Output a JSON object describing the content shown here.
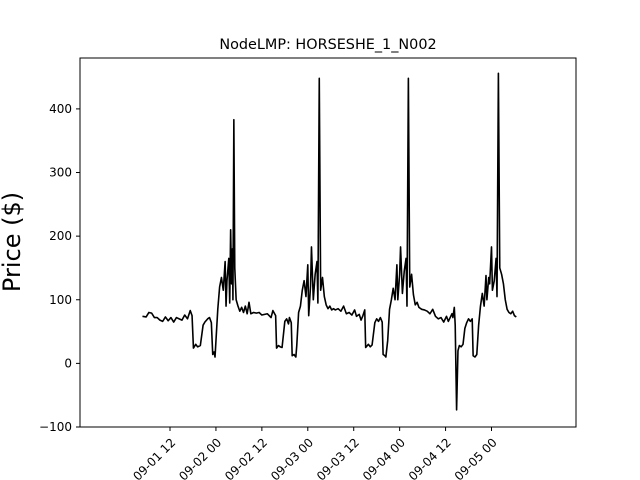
{
  "chart_data": {
    "type": "line",
    "title": "NodeLMP: HORSESHE_1_N002",
    "xlabel": "",
    "ylabel": "Price ($)",
    "ylim": [
      -100,
      480
    ],
    "xlim": [
      -0.48,
      4.92
    ],
    "grid": false,
    "yticks": [
      -100,
      0,
      100,
      200,
      300,
      400
    ],
    "xticks": [
      {
        "pos": 0.5,
        "label": "09-01 12"
      },
      {
        "pos": 1.0,
        "label": "09-02 00"
      },
      {
        "pos": 1.5,
        "label": "09-02 12"
      },
      {
        "pos": 2.0,
        "label": "09-03 00"
      },
      {
        "pos": 2.5,
        "label": "09-03 12"
      },
      {
        "pos": 3.0,
        "label": "09-04 00"
      },
      {
        "pos": 3.5,
        "label": "09-04 12"
      },
      {
        "pos": 4.0,
        "label": "09-05 00"
      }
    ],
    "series": [
      {
        "color": "#000000",
        "points": [
          [
            0.2,
            74
          ],
          [
            0.24,
            73
          ],
          [
            0.27,
            80
          ],
          [
            0.3,
            79
          ],
          [
            0.33,
            72
          ],
          [
            0.36,
            72
          ],
          [
            0.39,
            68
          ],
          [
            0.42,
            66
          ],
          [
            0.45,
            73
          ],
          [
            0.48,
            67
          ],
          [
            0.51,
            72
          ],
          [
            0.54,
            65
          ],
          [
            0.57,
            72
          ],
          [
            0.6,
            70
          ],
          [
            0.63,
            68
          ],
          [
            0.66,
            76
          ],
          [
            0.69,
            70
          ],
          [
            0.72,
            83
          ],
          [
            0.74,
            75
          ],
          [
            0.755,
            24
          ],
          [
            0.78,
            30
          ],
          [
            0.8,
            26
          ],
          [
            0.83,
            28
          ],
          [
            0.86,
            60
          ],
          [
            0.88,
            65
          ],
          [
            0.91,
            70
          ],
          [
            0.93,
            72
          ],
          [
            0.95,
            64
          ],
          [
            0.965,
            14
          ],
          [
            0.98,
            18
          ],
          [
            0.99,
            10
          ],
          [
            1.0,
            35
          ],
          [
            1.02,
            85
          ],
          [
            1.04,
            120
          ],
          [
            1.06,
            135
          ],
          [
            1.08,
            115
          ],
          [
            1.1,
            160
          ],
          [
            1.11,
            90
          ],
          [
            1.12,
            130
          ],
          [
            1.14,
            165
          ],
          [
            1.15,
            95
          ],
          [
            1.16,
            210
          ],
          [
            1.17,
            125
          ],
          [
            1.18,
            180
          ],
          [
            1.185,
            100
          ],
          [
            1.195,
            383
          ],
          [
            1.205,
            150
          ],
          [
            1.22,
            100
          ],
          [
            1.24,
            90
          ],
          [
            1.26,
            82
          ],
          [
            1.28,
            88
          ],
          [
            1.3,
            80
          ],
          [
            1.32,
            90
          ],
          [
            1.34,
            78
          ],
          [
            1.36,
            96
          ],
          [
            1.38,
            78
          ],
          [
            1.41,
            80
          ],
          [
            1.44,
            79
          ],
          [
            1.47,
            80
          ],
          [
            1.5,
            76
          ],
          [
            1.53,
            77
          ],
          [
            1.56,
            78
          ],
          [
            1.6,
            72
          ],
          [
            1.62,
            83
          ],
          [
            1.65,
            75
          ],
          [
            1.66,
            24
          ],
          [
            1.68,
            28
          ],
          [
            1.7,
            26
          ],
          [
            1.72,
            25
          ],
          [
            1.75,
            66
          ],
          [
            1.77,
            70
          ],
          [
            1.79,
            62
          ],
          [
            1.8,
            72
          ],
          [
            1.82,
            64
          ],
          [
            1.83,
            12
          ],
          [
            1.85,
            14
          ],
          [
            1.87,
            10
          ],
          [
            1.88,
            28
          ],
          [
            1.9,
            80
          ],
          [
            1.92,
            90
          ],
          [
            1.94,
            115
          ],
          [
            1.96,
            130
          ],
          [
            1.98,
            105
          ],
          [
            2.0,
            155
          ],
          [
            2.01,
            75
          ],
          [
            2.03,
            122
          ],
          [
            2.04,
            183
          ],
          [
            2.06,
            100
          ],
          [
            2.08,
            140
          ],
          [
            2.1,
            160
          ],
          [
            2.11,
            95
          ],
          [
            2.125,
            448
          ],
          [
            2.14,
            115
          ],
          [
            2.16,
            135
          ],
          [
            2.18,
            105
          ],
          [
            2.2,
            92
          ],
          [
            2.22,
            86
          ],
          [
            2.24,
            90
          ],
          [
            2.26,
            84
          ],
          [
            2.28,
            86
          ],
          [
            2.3,
            84
          ],
          [
            2.33,
            86
          ],
          [
            2.36,
            82
          ],
          [
            2.39,
            90
          ],
          [
            2.42,
            78
          ],
          [
            2.45,
            80
          ],
          [
            2.48,
            76
          ],
          [
            2.51,
            84
          ],
          [
            2.53,
            74
          ],
          [
            2.56,
            77
          ],
          [
            2.58,
            68
          ],
          [
            2.6,
            75
          ],
          [
            2.62,
            84
          ],
          [
            2.63,
            25
          ],
          [
            2.66,
            30
          ],
          [
            2.68,
            26
          ],
          [
            2.7,
            29
          ],
          [
            2.73,
            64
          ],
          [
            2.75,
            70
          ],
          [
            2.77,
            66
          ],
          [
            2.79,
            72
          ],
          [
            2.81,
            65
          ],
          [
            2.82,
            14
          ],
          [
            2.84,
            12
          ],
          [
            2.85,
            10
          ],
          [
            2.87,
            36
          ],
          [
            2.89,
            85
          ],
          [
            2.91,
            100
          ],
          [
            2.93,
            118
          ],
          [
            2.95,
            100
          ],
          [
            2.97,
            155
          ],
          [
            2.98,
            100
          ],
          [
            3.0,
            140
          ],
          [
            3.01,
            183
          ],
          [
            3.03,
            110
          ],
          [
            3.05,
            145
          ],
          [
            3.07,
            165
          ],
          [
            3.08,
            90
          ],
          [
            3.095,
            448
          ],
          [
            3.11,
            120
          ],
          [
            3.13,
            140
          ],
          [
            3.15,
            108
          ],
          [
            3.17,
            92
          ],
          [
            3.19,
            96
          ],
          [
            3.21,
            88
          ],
          [
            3.24,
            85
          ],
          [
            3.27,
            84
          ],
          [
            3.3,
            82
          ],
          [
            3.33,
            78
          ],
          [
            3.36,
            85
          ],
          [
            3.39,
            74
          ],
          [
            3.42,
            70
          ],
          [
            3.45,
            72
          ],
          [
            3.48,
            65
          ],
          [
            3.51,
            74
          ],
          [
            3.53,
            66
          ],
          [
            3.55,
            72
          ],
          [
            3.57,
            78
          ],
          [
            3.58,
            72
          ],
          [
            3.595,
            88
          ],
          [
            3.605,
            60
          ],
          [
            3.62,
            -73
          ],
          [
            3.635,
            20
          ],
          [
            3.65,
            28
          ],
          [
            3.67,
            26
          ],
          [
            3.69,
            30
          ],
          [
            3.71,
            55
          ],
          [
            3.73,
            64
          ],
          [
            3.75,
            70
          ],
          [
            3.77,
            66
          ],
          [
            3.79,
            70
          ],
          [
            3.8,
            12
          ],
          [
            3.82,
            10
          ],
          [
            3.84,
            14
          ],
          [
            3.86,
            60
          ],
          [
            3.88,
            90
          ],
          [
            3.9,
            110
          ],
          [
            3.92,
            90
          ],
          [
            3.94,
            138
          ],
          [
            3.95,
            100
          ],
          [
            3.97,
            135
          ],
          [
            3.98,
            125
          ],
          [
            4.0,
            183
          ],
          [
            4.01,
            115
          ],
          [
            4.03,
            130
          ],
          [
            4.05,
            165
          ],
          [
            4.06,
            105
          ],
          [
            4.075,
            456
          ],
          [
            4.09,
            150
          ],
          [
            4.11,
            140
          ],
          [
            4.13,
            125
          ],
          [
            4.15,
            100
          ],
          [
            4.17,
            85
          ],
          [
            4.19,
            80
          ],
          [
            4.21,
            78
          ],
          [
            4.23,
            82
          ],
          [
            4.25,
            75
          ],
          [
            4.27,
            73
          ]
        ]
      }
    ]
  }
}
